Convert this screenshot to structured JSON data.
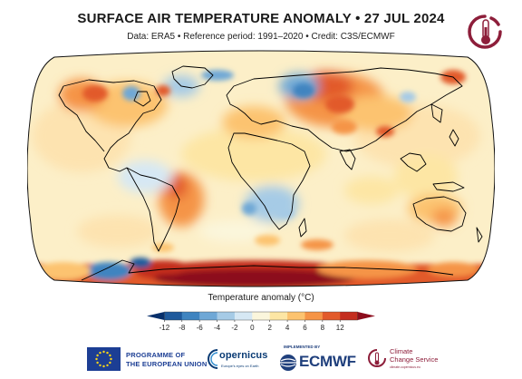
{
  "header": {
    "title": "SURFACE AIR TEMPERATURE ANOMALY • 27 JUL 2024",
    "subtitle": "Data: ERA5 • Reference period: 1991–2020 • Credit: C3S/ECMWF"
  },
  "map": {
    "projection": "Robinson",
    "variable": "surface air temperature anomaly",
    "hotspots": [
      "Antarctica",
      "eastern Europe",
      "western Russia",
      "western North America",
      "central Asia",
      "central Africa"
    ],
    "coldspots": [
      "western Siberia",
      "Hudson Bay region",
      "Southern Ocean near Antarctic Peninsula",
      "southern Africa"
    ]
  },
  "legend": {
    "title": "Temperature anomaly (°C)",
    "ticks": [
      "-12",
      "-8",
      "-6",
      "-4",
      "-2",
      "0",
      "2",
      "4",
      "6",
      "8",
      "12"
    ],
    "colors": [
      "#08306b",
      "#1f5a9c",
      "#3f84c0",
      "#6fa8d6",
      "#a6cbe6",
      "#d6e8f4",
      "#fbf6dc",
      "#fde6a4",
      "#fcc36f",
      "#f59446",
      "#e25a2a",
      "#c42d1f",
      "#8c0c1c"
    ]
  },
  "footer": {
    "eu_line1": "PROGRAMME OF",
    "eu_line2": "THE EUROPEAN UNION",
    "copernicus": "opernicus",
    "copernicus_sub": "Europe's eyes on Earth",
    "implemented_by": "IMPLEMENTED BY",
    "ecmwf": "ECMWF",
    "ccs_line1": "Climate",
    "ccs_line2": "Change Service",
    "ccs_sub": "climate.copernicus.eu"
  }
}
